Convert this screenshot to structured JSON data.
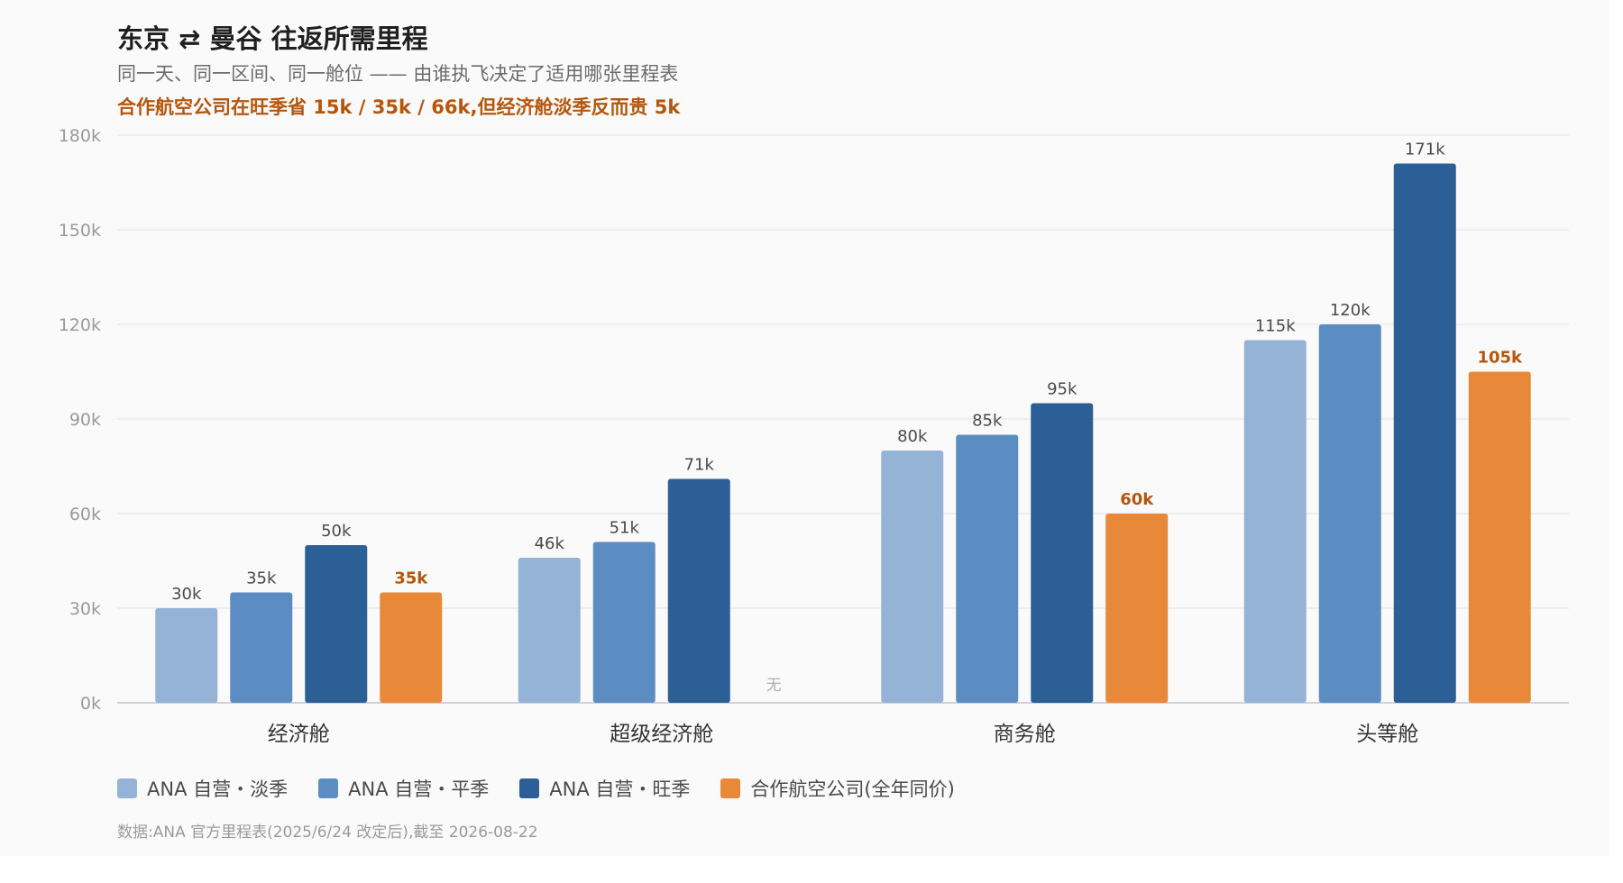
{
  "title": "东京 ⇄ 曼谷 往返所需里程",
  "subtitle": "同一天、同一区间、同一舱位 —— 由谁执飞决定了适用哪张里程表",
  "headline": "合作航空公司在旺季省 15k / 35k / 66k,但经济舱淡季反而贵 5k",
  "source": "数据:ANA 官方里程表(2025/6/24 改定后),截至 2026-08-22",
  "colors": {
    "offpeak": "#95b3d7",
    "regular": "#5b8dc2",
    "peak": "#2c5f96",
    "partner": "#e8893a",
    "partner_label": "#b5560d",
    "missing_label": "#b0b0b0"
  },
  "chart_data": {
    "type": "bar",
    "categories": [
      "经济舱",
      "超级经济舱",
      "商务舱",
      "头等舱"
    ],
    "ylim": [
      0,
      180
    ],
    "yticks": [
      0,
      30,
      60,
      90,
      120,
      150,
      180
    ],
    "ytick_labels": [
      "0k",
      "30k",
      "60k",
      "90k",
      "120k",
      "150k",
      "180k"
    ],
    "grid": true,
    "legend_position": "bottom-left",
    "missing_label": "无",
    "series": [
      {
        "name": "ANA 自营・淡季",
        "color": "#95b3d7",
        "values": [
          30,
          46,
          80,
          115
        ],
        "labels": [
          "30k",
          "46k",
          "80k",
          "115k"
        ]
      },
      {
        "name": "ANA 自营・平季",
        "color": "#5b8dc2",
        "values": [
          35,
          51,
          85,
          120
        ],
        "labels": [
          "35k",
          "51k",
          "85k",
          "120k"
        ]
      },
      {
        "name": "ANA 自营・旺季",
        "color": "#2c5f96",
        "values": [
          50,
          71,
          95,
          171
        ],
        "labels": [
          "50k",
          "71k",
          "95k",
          "171k"
        ]
      },
      {
        "name": "合作航空公司(全年同价)",
        "color": "#e8893a",
        "values": [
          35,
          null,
          60,
          105
        ],
        "labels": [
          "35k",
          "",
          "60k",
          "105k"
        ]
      }
    ]
  }
}
